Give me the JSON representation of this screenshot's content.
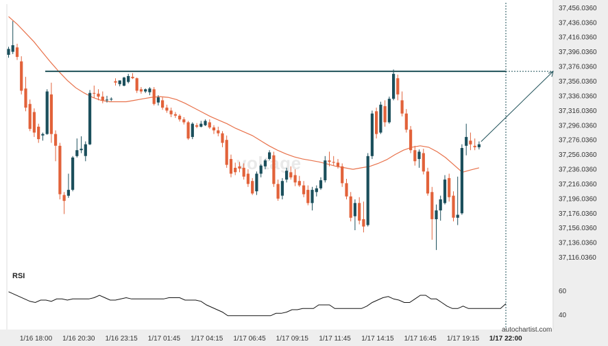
{
  "brand": "autochartist.com",
  "watermark": "voltage",
  "rsi_panel": {
    "title": "RSI",
    "ticks": [
      "60",
      "40"
    ]
  },
  "colors": {
    "bull": "#1b4f5c",
    "bear": "#e2623a",
    "ma": "#e8714a",
    "resistance": "#1d4f57",
    "rsi": "#111111",
    "grid": "#e3e3e3",
    "axis_bg": "#eeeeee"
  },
  "chart_data": {
    "type": "candlestick",
    "y_ticks": [
      "37,456.0360",
      "37,436.0360",
      "37,416.0360",
      "37,396.0360",
      "37,376.0360",
      "37,356.0360",
      "37,336.0360",
      "37,316.0360",
      "37,296.0360",
      "37,276.0360",
      "37,256.0360",
      "37,236.0360",
      "37,216.0360",
      "37,196.0360",
      "37,176.0360",
      "37,156.0360",
      "37,136.0360",
      "37,116.0360"
    ],
    "ylim": [
      37096.036,
      37461.036
    ],
    "x_ticks": [
      "1/16 18:00",
      "1/16 20:30",
      "1/16 23:15",
      "1/17 01:45",
      "1/17 04:15",
      "1/17 06:45",
      "1/17 09:15",
      "1/17 11:45",
      "1/17 14:15",
      "1/17 16:45",
      "1/17 19:15",
      "1/17 22:00"
    ],
    "resistance_level": 37369.5,
    "forecast_target": 37369.5,
    "candles": [
      {
        "o": 37392,
        "h": 37403,
        "l": 37388,
        "c": 37400
      },
      {
        "o": 37396,
        "h": 37438,
        "l": 37393,
        "c": 37405
      },
      {
        "o": 37402,
        "h": 37407,
        "l": 37385,
        "c": 37389
      },
      {
        "o": 37383,
        "h": 37390,
        "l": 37338,
        "c": 37343
      },
      {
        "o": 37346,
        "h": 37362,
        "l": 37315,
        "c": 37320
      },
      {
        "o": 37325,
        "h": 37331,
        "l": 37288,
        "c": 37291
      },
      {
        "o": 37314,
        "h": 37319,
        "l": 37280,
        "c": 37286
      },
      {
        "o": 37294,
        "h": 37298,
        "l": 37272,
        "c": 37277
      },
      {
        "o": 37282,
        "h": 37286,
        "l": 37275,
        "c": 37284
      },
      {
        "o": 37284,
        "h": 37345,
        "l": 37283,
        "c": 37342
      },
      {
        "o": 37338,
        "h": 37354,
        "l": 37272,
        "c": 37284
      },
      {
        "o": 37284,
        "h": 37289,
        "l": 37247,
        "c": 37268
      },
      {
        "o": 37268,
        "h": 37272,
        "l": 37195,
        "c": 37202
      },
      {
        "o": 37201,
        "h": 37205,
        "l": 37175,
        "c": 37193
      },
      {
        "o": 37200,
        "h": 37230,
        "l": 37197,
        "c": 37208
      },
      {
        "o": 37208,
        "h": 37254,
        "l": 37206,
        "c": 37252
      },
      {
        "o": 37254,
        "h": 37278,
        "l": 37252,
        "c": 37262
      },
      {
        "o": 37262,
        "h": 37281,
        "l": 37258,
        "c": 37264
      },
      {
        "o": 37254,
        "h": 37274,
        "l": 37247,
        "c": 37270
      },
      {
        "o": 37270,
        "h": 37344,
        "l": 37269,
        "c": 37340
      },
      {
        "o": 37340,
        "h": 37350,
        "l": 37333,
        "c": 37339
      },
      {
        "o": 37339,
        "h": 37345,
        "l": 37330,
        "c": 37335
      },
      {
        "o": 37335,
        "h": 37342,
        "l": 37326,
        "c": 37330
      },
      {
        "o": 37330,
        "h": 37336,
        "l": 37327,
        "c": 37331
      },
      {
        "o": 37331,
        "h": 37334,
        "l": 37329,
        "c": 37332
      },
      {
        "o": 37356,
        "h": 37360,
        "l": 37350,
        "c": 37354
      },
      {
        "o": 37352,
        "h": 37357,
        "l": 37349,
        "c": 37357
      },
      {
        "o": 37350,
        "h": 37362,
        "l": 37349,
        "c": 37361
      },
      {
        "o": 37355,
        "h": 37366,
        "l": 37353,
        "c": 37363
      },
      {
        "o": 37362,
        "h": 37367,
        "l": 37359,
        "c": 37360
      },
      {
        "o": 37360,
        "h": 37361,
        "l": 37340,
        "c": 37343
      },
      {
        "o": 37345,
        "h": 37348,
        "l": 37339,
        "c": 37342
      },
      {
        "o": 37342,
        "h": 37346,
        "l": 37340,
        "c": 37345
      },
      {
        "o": 37341,
        "h": 37348,
        "l": 37337,
        "c": 37346
      },
      {
        "o": 37345,
        "h": 37348,
        "l": 37323,
        "c": 37325
      },
      {
        "o": 37327,
        "h": 37337,
        "l": 37323,
        "c": 37334
      },
      {
        "o": 37330,
        "h": 37334,
        "l": 37317,
        "c": 37320
      },
      {
        "o": 37320,
        "h": 37324,
        "l": 37313,
        "c": 37316
      },
      {
        "o": 37316,
        "h": 37320,
        "l": 37307,
        "c": 37311
      },
      {
        "o": 37311,
        "h": 37314,
        "l": 37306,
        "c": 37309
      },
      {
        "o": 37309,
        "h": 37311,
        "l": 37301,
        "c": 37304
      },
      {
        "o": 37304,
        "h": 37307,
        "l": 37297,
        "c": 37300
      },
      {
        "o": 37300,
        "h": 37302,
        "l": 37276,
        "c": 37278
      },
      {
        "o": 37280,
        "h": 37300,
        "l": 37277,
        "c": 37298
      },
      {
        "o": 37296,
        "h": 37299,
        "l": 37292,
        "c": 37294
      },
      {
        "o": 37294,
        "h": 37302,
        "l": 37293,
        "c": 37298
      },
      {
        "o": 37296,
        "h": 37304,
        "l": 37295,
        "c": 37302
      },
      {
        "o": 37300,
        "h": 37304,
        "l": 37291,
        "c": 37293
      },
      {
        "o": 37293,
        "h": 37296,
        "l": 37284,
        "c": 37289
      },
      {
        "o": 37289,
        "h": 37294,
        "l": 37281,
        "c": 37285
      },
      {
        "o": 37285,
        "h": 37288,
        "l": 37266,
        "c": 37272
      },
      {
        "o": 37276,
        "h": 37282,
        "l": 37238,
        "c": 37242
      },
      {
        "o": 37250,
        "h": 37256,
        "l": 37225,
        "c": 37230
      },
      {
        "o": 37238,
        "h": 37245,
        "l": 37228,
        "c": 37232
      },
      {
        "o": 37240,
        "h": 37246,
        "l": 37232,
        "c": 37237
      },
      {
        "o": 37238,
        "h": 37244,
        "l": 37222,
        "c": 37226
      },
      {
        "o": 37230,
        "h": 37236,
        "l": 37212,
        "c": 37216
      },
      {
        "o": 37220,
        "h": 37224,
        "l": 37201,
        "c": 37203
      },
      {
        "o": 37206,
        "h": 37233,
        "l": 37201,
        "c": 37230
      },
      {
        "o": 37230,
        "h": 37243,
        "l": 37225,
        "c": 37241
      },
      {
        "o": 37240,
        "h": 37250,
        "l": 37236,
        "c": 37248
      },
      {
        "o": 37250,
        "h": 37262,
        "l": 37248,
        "c": 37259
      },
      {
        "o": 37255,
        "h": 37260,
        "l": 37212,
        "c": 37216
      },
      {
        "o": 37216,
        "h": 37222,
        "l": 37193,
        "c": 37196
      },
      {
        "o": 37200,
        "h": 37224,
        "l": 37195,
        "c": 37220
      },
      {
        "o": 37222,
        "h": 37238,
        "l": 37218,
        "c": 37234
      },
      {
        "o": 37232,
        "h": 37240,
        "l": 37222,
        "c": 37225
      },
      {
        "o": 37228,
        "h": 37236,
        "l": 37213,
        "c": 37218
      },
      {
        "o": 37220,
        "h": 37227,
        "l": 37212,
        "c": 37214
      },
      {
        "o": 37214,
        "h": 37220,
        "l": 37198,
        "c": 37202
      },
      {
        "o": 37208,
        "h": 37214,
        "l": 37187,
        "c": 37190
      },
      {
        "o": 37190,
        "h": 37212,
        "l": 37180,
        "c": 37208
      },
      {
        "o": 37205,
        "h": 37214,
        "l": 37199,
        "c": 37210
      },
      {
        "o": 37210,
        "h": 37225,
        "l": 37208,
        "c": 37221
      },
      {
        "o": 37221,
        "h": 37254,
        "l": 37218,
        "c": 37248
      },
      {
        "o": 37248,
        "h": 37260,
        "l": 37240,
        "c": 37246
      },
      {
        "o": 37246,
        "h": 37254,
        "l": 37241,
        "c": 37245
      },
      {
        "o": 37245,
        "h": 37250,
        "l": 37237,
        "c": 37240
      },
      {
        "o": 37240,
        "h": 37244,
        "l": 37212,
        "c": 37217
      },
      {
        "o": 37217,
        "h": 37223,
        "l": 37195,
        "c": 37199
      },
      {
        "o": 37199,
        "h": 37205,
        "l": 37165,
        "c": 37170
      },
      {
        "o": 37172,
        "h": 37195,
        "l": 37153,
        "c": 37190
      },
      {
        "o": 37190,
        "h": 37198,
        "l": 37161,
        "c": 37166
      },
      {
        "o": 37168,
        "h": 37192,
        "l": 37150,
        "c": 37158
      },
      {
        "o": 37160,
        "h": 37258,
        "l": 37158,
        "c": 37254
      },
      {
        "o": 37254,
        "h": 37316,
        "l": 37250,
        "c": 37312
      },
      {
        "o": 37315,
        "h": 37320,
        "l": 37278,
        "c": 37284
      },
      {
        "o": 37286,
        "h": 37328,
        "l": 37284,
        "c": 37324
      },
      {
        "o": 37322,
        "h": 37330,
        "l": 37294,
        "c": 37300
      },
      {
        "o": 37300,
        "h": 37335,
        "l": 37298,
        "c": 37332
      },
      {
        "o": 37332,
        "h": 37372,
        "l": 37330,
        "c": 37366
      },
      {
        "o": 37360,
        "h": 37365,
        "l": 37330,
        "c": 37338
      },
      {
        "o": 37330,
        "h": 37342,
        "l": 37308,
        "c": 37312
      },
      {
        "o": 37312,
        "h": 37318,
        "l": 37286,
        "c": 37290
      },
      {
        "o": 37290,
        "h": 37295,
        "l": 37258,
        "c": 37262
      },
      {
        "o": 37262,
        "h": 37268,
        "l": 37241,
        "c": 37247
      },
      {
        "o": 37250,
        "h": 37263,
        "l": 37238,
        "c": 37260
      },
      {
        "o": 37258,
        "h": 37264,
        "l": 37229,
        "c": 37233
      },
      {
        "o": 37233,
        "h": 37238,
        "l": 37200,
        "c": 37203
      },
      {
        "o": 37205,
        "h": 37212,
        "l": 37140,
        "c": 37168
      },
      {
        "o": 37168,
        "h": 37188,
        "l": 37126,
        "c": 37180
      },
      {
        "o": 37180,
        "h": 37200,
        "l": 37166,
        "c": 37195
      },
      {
        "o": 37190,
        "h": 37228,
        "l": 37188,
        "c": 37222
      },
      {
        "o": 37224,
        "h": 37230,
        "l": 37192,
        "c": 37198
      },
      {
        "o": 37200,
        "h": 37206,
        "l": 37165,
        "c": 37170
      },
      {
        "o": 37170,
        "h": 37226,
        "l": 37160,
        "c": 37174
      },
      {
        "o": 37176,
        "h": 37270,
        "l": 37174,
        "c": 37265
      },
      {
        "o": 37268,
        "h": 37298,
        "l": 37255,
        "c": 37280
      },
      {
        "o": 37275,
        "h": 37286,
        "l": 37262,
        "c": 37270
      },
      {
        "o": 37268,
        "h": 37278,
        "l": 37262,
        "c": 37266
      },
      {
        "o": 37266,
        "h": 37274,
        "l": 37263,
        "c": 37270
      }
    ],
    "moving_average": [
      37444,
      37434,
      37422,
      37410,
      37396,
      37382,
      37369,
      37357,
      37347,
      37340,
      37334,
      37330,
      37328,
      37328,
      37328,
      37330,
      37332,
      37334,
      37335,
      37334,
      37331,
      37326,
      37320,
      37314,
      37308,
      37303,
      37298,
      37292,
      37287,
      37282,
      37275,
      37268,
      37262,
      37257,
      37253,
      37250,
      37248,
      37246,
      37243,
      37240,
      37238,
      37236,
      37238,
      37240,
      37244,
      37249,
      37256,
      37262,
      37266,
      37268,
      37266,
      37260,
      37252,
      37242,
      37232,
      37235,
      37238
    ],
    "rsi": [
      59,
      57,
      55,
      53,
      51,
      50,
      52,
      52,
      51,
      53,
      53,
      52,
      53,
      53,
      53,
      53,
      54,
      56,
      54,
      52,
      52,
      53,
      54,
      53,
      53,
      53,
      53,
      53,
      53,
      53,
      54,
      54,
      54,
      52,
      52,
      52,
      51,
      48,
      46,
      44,
      42,
      39,
      39,
      39,
      39,
      39,
      39,
      39,
      39,
      39,
      41,
      41,
      42,
      44,
      44,
      45,
      45,
      45,
      48,
      48,
      48,
      45,
      45,
      45,
      45,
      45,
      45,
      47,
      50,
      52,
      54,
      55,
      53,
      52,
      50,
      50,
      53,
      56,
      56,
      53,
      53,
      50,
      47,
      45,
      45,
      47,
      45,
      45,
      45,
      45,
      45,
      45,
      45,
      49
    ]
  }
}
